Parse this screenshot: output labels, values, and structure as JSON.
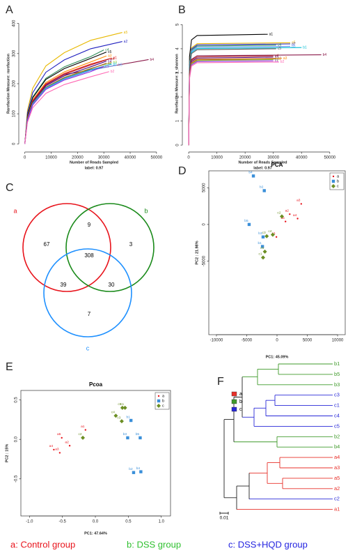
{
  "chart_data": [
    {
      "type": "line",
      "panel": "A",
      "xlabel": "Number of Reads Sampled",
      "subtitle": "label: 0.97",
      "ylabel": "Rarefaction Measure: rarefaction",
      "xlim": [
        -1500,
        54000
      ],
      "ylim": [
        -20,
        420
      ],
      "xticks": [
        0,
        10000,
        20000,
        30000,
        40000,
        50000
      ],
      "yticks": [
        0,
        100,
        200,
        300,
        400
      ],
      "series": [
        {
          "name": "a5",
          "color": "#e8b800",
          "x": [
            0,
            1000,
            3000,
            8000,
            15000,
            25000,
            37000
          ],
          "values": [
            0,
            111,
            185,
            259,
            303,
            344,
            370
          ]
        },
        {
          "name": "a2",
          "color": "#1f1fbf",
          "x": [
            0,
            1000,
            3000,
            8000,
            15000,
            25000,
            37000
          ],
          "values": [
            0,
            102,
            170,
            238,
            279,
            316,
            340
          ]
        },
        {
          "name": "c4",
          "color": "#2e8b57",
          "x": [
            0,
            1000,
            3000,
            8000,
            15000,
            25000,
            30000
          ],
          "values": [
            0,
            94,
            156,
            218,
            256,
            290,
            312
          ]
        },
        {
          "name": "c5",
          "color": "#000000",
          "x": [
            0,
            1000,
            3000,
            8000,
            15000,
            25000,
            31000
          ],
          "values": [
            0,
            92,
            153,
            214,
            250,
            284,
            305
          ]
        },
        {
          "name": "a3",
          "color": "#ff8c00",
          "x": [
            0,
            1000,
            3000,
            8000,
            15000,
            25000,
            31000
          ],
          "values": [
            0,
            88,
            146,
            204,
            239,
            272,
            292
          ]
        },
        {
          "name": "a1",
          "color": "#e41a1c",
          "x": [
            0,
            1000,
            3000,
            8000,
            15000,
            25000,
            33000
          ],
          "values": [
            0,
            86,
            143,
            200,
            234,
            265,
            285
          ]
        },
        {
          "name": "a4",
          "color": "#b22222",
          "x": [
            0,
            1000,
            3000,
            8000,
            15000,
            25000,
            32000
          ],
          "values": [
            0,
            85,
            141,
            197,
            231,
            262,
            282
          ]
        },
        {
          "name": "b4",
          "color": "#8b1a4a",
          "x": [
            0,
            1000,
            3000,
            8000,
            15000,
            25000,
            47000
          ],
          "values": [
            0,
            84,
            140,
            196,
            230,
            246,
            280
          ]
        },
        {
          "name": "c3",
          "color": "#4b0082",
          "x": [
            0,
            1000,
            3000,
            8000,
            15000,
            25000,
            31000
          ],
          "values": [
            0,
            83,
            138,
            193,
            226,
            256,
            275
          ]
        },
        {
          "name": "b3",
          "color": "#9acd32",
          "x": [
            0,
            1000,
            3000,
            8000,
            15000,
            25000,
            33000
          ],
          "values": [
            0,
            81,
            135,
            189,
            221,
            251,
            270
          ]
        },
        {
          "name": "c2",
          "color": "#a0522d",
          "x": [
            0,
            1000,
            3000,
            8000,
            15000,
            25000,
            31000
          ],
          "values": [
            0,
            80,
            134,
            188,
            220,
            249,
            268
          ]
        },
        {
          "name": "b1",
          "color": "#00bcd4",
          "x": [
            0,
            1000,
            3000,
            8000,
            15000,
            25000,
            33000
          ],
          "values": [
            0,
            80,
            133,
            186,
            217,
            246,
            265
          ]
        },
        {
          "name": "b5",
          "color": "#6495ed",
          "x": [
            0,
            1000,
            3000,
            8000,
            15000,
            25000,
            35000
          ],
          "values": [
            0,
            79,
            131,
            183,
            215,
            244,
            262
          ]
        },
        {
          "name": "c1",
          "color": "#8a2be2",
          "x": [
            0,
            1000,
            3000,
            8000,
            15000,
            25000,
            30000
          ],
          "values": [
            0,
            77,
            129,
            181,
            212,
            240,
            258
          ]
        },
        {
          "name": "b2",
          "color": "#ff69b4",
          "x": [
            0,
            1000,
            3000,
            8000,
            15000,
            25000,
            32000
          ],
          "values": [
            0,
            72,
            120,
            168,
            197,
            223,
            240
          ]
        }
      ]
    },
    {
      "type": "line",
      "panel": "B",
      "xlabel": "Number of Reads Sampled",
      "subtitle": "label: 0.97",
      "ylabel": "Rarefaction Measure: r_shannon",
      "xlim": [
        -1500,
        54000
      ],
      "ylim": [
        -0.2,
        5.3
      ],
      "xticks": [
        0,
        10000,
        20000,
        30000,
        40000,
        50000
      ],
      "yticks": [
        0,
        1,
        2,
        3,
        4,
        5
      ],
      "series": [
        {
          "name": "a1",
          "color": "#000000",
          "x": [
            0,
            300,
            1000,
            3000,
            28000
          ],
          "values": [
            0,
            3.68,
            4.37,
            4.55,
            4.6
          ]
        },
        {
          "name": "a5",
          "color": "#e8b800",
          "x": [
            0,
            300,
            1000,
            3000,
            36000
          ],
          "values": [
            0,
            3.4,
            4.04,
            4.21,
            4.25
          ]
        },
        {
          "name": "a2",
          "color": "#1f1fbf",
          "x": [
            0,
            300,
            1000,
            3000,
            36000
          ],
          "values": [
            0,
            3.36,
            3.99,
            4.16,
            4.2
          ]
        },
        {
          "name": "c4",
          "color": "#2e8b57",
          "x": [
            0,
            300,
            1000,
            3000,
            31000
          ],
          "values": [
            0,
            3.32,
            3.94,
            4.11,
            4.15
          ]
        },
        {
          "name": "b5",
          "color": "#6495ed",
          "x": [
            0,
            300,
            1000,
            3000,
            36000
          ],
          "values": [
            0,
            3.28,
            3.9,
            4.06,
            4.1
          ]
        },
        {
          "name": "b1",
          "color": "#00bcd4",
          "x": [
            0,
            300,
            1000,
            3000,
            40000
          ],
          "values": [
            0,
            3.24,
            3.85,
            4.01,
            4.05
          ]
        },
        {
          "name": "c5",
          "color": "#555555",
          "x": [
            0,
            300,
            1000,
            3000,
            31000
          ],
          "values": [
            0,
            3.2,
            3.8,
            3.96,
            4.0
          ]
        },
        {
          "name": "b4",
          "color": "#8b1a4a",
          "x": [
            0,
            300,
            1000,
            3000,
            47000
          ],
          "values": [
            0,
            3.0,
            3.56,
            3.71,
            3.75
          ]
        },
        {
          "name": "a4",
          "color": "#b22222",
          "x": [
            0,
            300,
            1000,
            3000,
            30000
          ],
          "values": [
            0,
            2.96,
            3.52,
            3.66,
            3.7
          ]
        },
        {
          "name": "c3",
          "color": "#4b0082",
          "x": [
            0,
            300,
            1000,
            3000,
            30000
          ],
          "values": [
            0,
            2.92,
            3.47,
            3.61,
            3.65
          ]
        },
        {
          "name": "a3",
          "color": "#ff8c00",
          "x": [
            0,
            300,
            1000,
            3000,
            33000
          ],
          "values": [
            0,
            2.88,
            3.42,
            3.56,
            3.6
          ]
        },
        {
          "name": "c2",
          "color": "#a0522d",
          "x": [
            0,
            300,
            1000,
            3000,
            31000
          ],
          "values": [
            0,
            2.86,
            3.4,
            3.54,
            3.58
          ]
        },
        {
          "name": "b3",
          "color": "#9acd32",
          "x": [
            0,
            300,
            1000,
            3000,
            30000
          ],
          "values": [
            0,
            2.84,
            3.37,
            3.51,
            3.55
          ]
        },
        {
          "name": "c1",
          "color": "#8a2be2",
          "x": [
            0,
            300,
            1000,
            3000,
            30000
          ],
          "values": [
            0,
            2.8,
            3.33,
            3.47,
            3.5
          ]
        },
        {
          "name": "b2",
          "color": "#ff69b4",
          "x": [
            0,
            300,
            1000,
            3000,
            32000
          ],
          "values": [
            0,
            2.76,
            3.28,
            3.42,
            3.45
          ]
        }
      ]
    },
    {
      "type": "venn",
      "panel": "C",
      "sets": [
        {
          "name": "a",
          "color": "#e8131b"
        },
        {
          "name": "b",
          "color": "#1a8a1a"
        },
        {
          "name": "c",
          "color": "#1e90ff"
        }
      ],
      "values": [
        67,
        3,
        7,
        9,
        39,
        30,
        308
      ]
    },
    {
      "type": "scatter",
      "panel": "D",
      "title": "PCA",
      "xlabel": "PC1: 45.09%",
      "ylabel": "PC2 : 21.98%",
      "xlim": [
        -11260,
        11260
      ],
      "ylim": [
        -15000,
        7300
      ],
      "xticks": [
        -10000,
        -5000,
        0,
        5000,
        10000
      ],
      "yticks": [
        -5000,
        0,
        5000
      ],
      "series": [
        {
          "name": "a",
          "color": "#e8131b",
          "marker": "dot",
          "labels": [
            "a1",
            "a2",
            "a3",
            "a4",
            "a5"
          ],
          "x": [
            -100,
            2100,
            4000,
            3400,
            1400
          ],
          "values": [
            -1700,
            1400,
            2800,
            800,
            400
          ]
        },
        {
          "name": "b",
          "color": "#3a8fd9",
          "marker": "square",
          "labels": [
            "b1",
            "b2",
            "b3",
            "b4",
            "b5"
          ],
          "x": [
            -2400,
            -2100,
            -2300,
            -3900,
            -4600
          ],
          "values": [
            -3000,
            4600,
            -1700,
            6600,
            0
          ]
        },
        {
          "name": "c",
          "color": "#6b8e23",
          "marker": "diamond",
          "labels": [
            "c1",
            "c2",
            "c3",
            "c4",
            "c5"
          ],
          "x": [
            -2300,
            800,
            -1700,
            -700,
            -2000
          ],
          "values": [
            -4500,
            1100,
            -1600,
            -1400,
            -3700
          ]
        }
      ]
    },
    {
      "type": "scatter",
      "panel": "E",
      "title": "Pcoa",
      "xlabel": "PC1: 47.64%",
      "ylabel": "PC2 : 15%",
      "xlim": [
        -1.13,
        1.14
      ],
      "ylim": [
        -0.97,
        0.62
      ],
      "xticks": [
        {
          "value": -1,
          "label": "-1.0"
        },
        -0.5,
        {
          "value": 0,
          "label": "0.0"
        },
        0.5,
        {
          "value": 1,
          "label": "1.0"
        }
      ],
      "yticks": [
        -0.5,
        {
          "value": 0,
          "label": "0.0"
        },
        0.5
      ],
      "series": [
        {
          "name": "a",
          "color": "#e8131b",
          "marker": "dot",
          "labels": [
            "a1",
            "a2",
            "a3",
            "a4",
            "a5"
          ],
          "x": [
            -0.15,
            -0.39,
            -0.54,
            -0.63,
            -0.51
          ],
          "values": [
            0.12,
            -0.08,
            -0.17,
            -0.13,
            0.02
          ]
        },
        {
          "name": "b",
          "color": "#3a8fd9",
          "marker": "square",
          "labels": [
            "b1",
            "b2",
            "b3",
            "b4",
            "b5"
          ],
          "x": [
            0.54,
            0.58,
            0.49,
            0.69,
            0.68
          ],
          "values": [
            0.24,
            -0.42,
            0.02,
            -0.41,
            0.02
          ]
        },
        {
          "name": "c",
          "color": "#6b8e23",
          "marker": "diamond",
          "labels": [
            "c1",
            "c2",
            "c3",
            "c4",
            "c5"
          ],
          "x": [
            0.45,
            -0.19,
            0.4,
            0.31,
            0.41
          ],
          "values": [
            0.4,
            0.02,
            0.23,
            0.3,
            0.4
          ]
        }
      ]
    },
    {
      "type": "dendrogram",
      "panel": "F",
      "scale_label": "0.01",
      "legend": [
        {
          "name": "a",
          "color": "#e8302a"
        },
        {
          "name": "b",
          "color": "#3f9a2a"
        },
        {
          "name": "c",
          "color": "#2828d8"
        }
      ],
      "leaves": [
        {
          "label": "b1",
          "color": "#3f9a2a"
        },
        {
          "label": "b5",
          "color": "#3f9a2a"
        },
        {
          "label": "b3",
          "color": "#3f9a2a"
        },
        {
          "label": "c3",
          "color": "#2828d8"
        },
        {
          "label": "c1",
          "color": "#2828d8"
        },
        {
          "label": "c4",
          "color": "#2828d8"
        },
        {
          "label": "c5",
          "color": "#2828d8"
        },
        {
          "label": "b2",
          "color": "#3f9a2a"
        },
        {
          "label": "b4",
          "color": "#3f9a2a"
        },
        {
          "label": "a4",
          "color": "#e8302a"
        },
        {
          "label": "a3",
          "color": "#e8302a"
        },
        {
          "label": "a5",
          "color": "#e8302a"
        },
        {
          "label": "a2",
          "color": "#e8302a"
        },
        {
          "label": "c2",
          "color": "#2828d8"
        },
        {
          "label": "a1",
          "color": "#e8302a"
        }
      ]
    }
  ],
  "footer": [
    {
      "text": "a: Control group",
      "color": "#e8131b"
    },
    {
      "text": "b: DSS group",
      "color": "#2fc02f"
    },
    {
      "text": "c: DSS+HQD group",
      "color": "#2222e0"
    }
  ]
}
